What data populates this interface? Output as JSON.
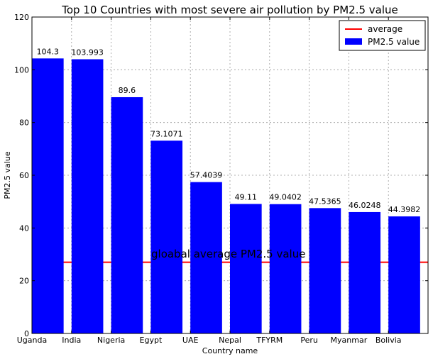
{
  "chart_data": {
    "type": "bar",
    "title": "Top 10 Countries with most severe air pollution by PM2.5 value",
    "xlabel": "Country name",
    "ylabel": "PM2.5 value",
    "ylim": [
      0,
      120
    ],
    "yticks": [
      0,
      20,
      40,
      60,
      80,
      100,
      120
    ],
    "grid": true,
    "legend_position": "top-right",
    "categories": [
      "Uganda",
      "India",
      "Nigeria",
      "Egypt",
      "UAE",
      "Nepal",
      "TFYRM",
      "Peru",
      "Myanmar",
      "Bolivia"
    ],
    "series": [
      {
        "name": "PM2.5 value",
        "color": "#0000ff",
        "values": [
          104.3,
          103.993,
          89.6,
          73.1071,
          57.4039,
          49.11,
          49.0402,
          47.5365,
          46.0248,
          44.3982
        ],
        "labels": [
          "104.3",
          "103.993",
          "89.6",
          "73.1071",
          "57.4039",
          "49.11",
          "49.0402",
          "47.5365",
          "46.0248",
          "44.3982"
        ]
      }
    ],
    "reference_line": {
      "name": "average",
      "value": 27,
      "color": "#ff0000"
    },
    "annotation": {
      "text": "gloabal average PM2.5 value",
      "color": "#bfbf3f"
    }
  }
}
